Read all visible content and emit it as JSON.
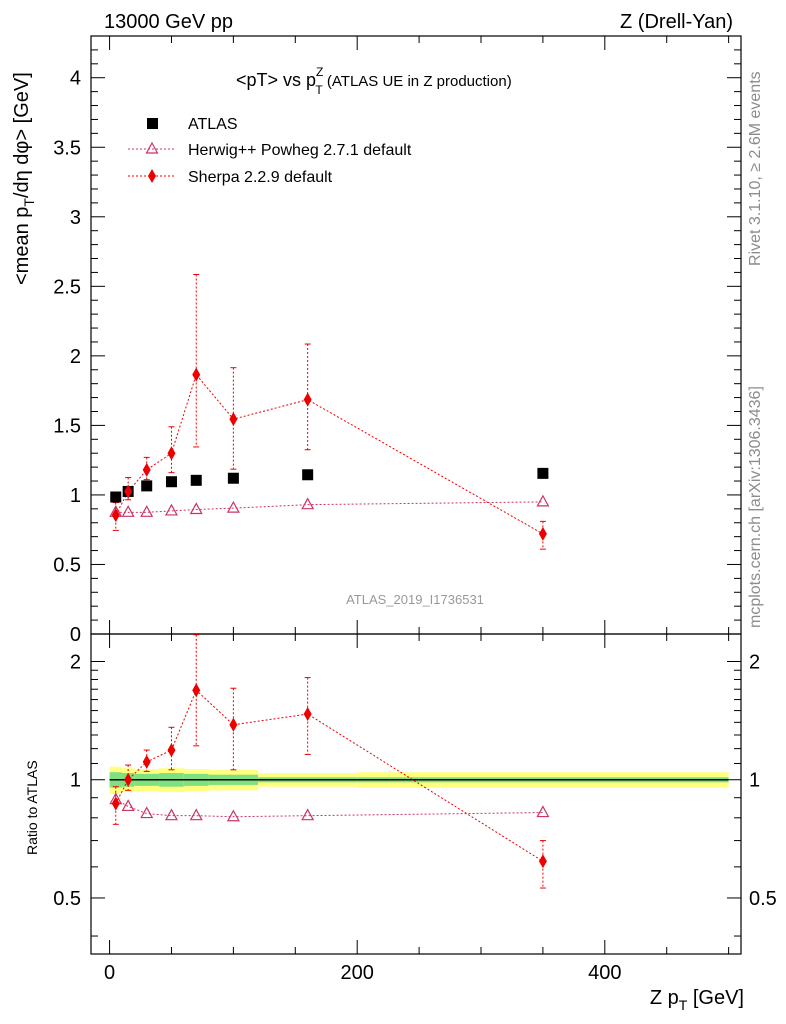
{
  "header": {
    "energy": "13000 GeV pp",
    "process": "Z (Drell-Yan)"
  },
  "side": {
    "rivet": "Rivet 3.1.10, ≥ 2.6M events",
    "site": "mcplots.cern.ch [arXiv:1306.3436]"
  },
  "main": {
    "title_lead": "<pT> vs p",
    "title_sup": "Z",
    "title_sub": "T",
    "title_tail": " (ATLAS UE in Z production)",
    "ylabel_lead": "<mean p",
    "ylabel_sub": "T",
    "ylabel_tail": "/dη dφ> [GeV]",
    "watermark": "ATLAS_2019_I1736531",
    "y_ticks": [
      "0",
      "0.5",
      "1",
      "1.5",
      "2",
      "2.5",
      "3",
      "3.5",
      "4"
    ]
  },
  "ratio": {
    "ylabel": "Ratio to ATLAS",
    "y_ticks": [
      "0.5",
      "1",
      "2"
    ]
  },
  "xaxis": {
    "label_lead": "Z p",
    "label_sub": "T",
    "label_tail": " [GeV]",
    "ticks": [
      "0",
      "200",
      "400"
    ]
  },
  "colors": {
    "atlas": "#000000",
    "herwig": "#cc3366",
    "sherpa": "#ee0000",
    "band_inner": "#7fe07f",
    "band_outer": "#ffff80"
  },
  "chart_data": {
    "type": "scatter",
    "xlim": [
      -15,
      510
    ],
    "ylim": [
      0,
      4.3
    ],
    "ratio_ylim": [
      0.36,
      2.35
    ],
    "ratio_scale": "log",
    "grid": false,
    "legend_position": "top-left",
    "x": [
      5,
      15,
      30,
      50,
      70,
      100,
      160,
      350
    ],
    "series": [
      {
        "name": "ATLAS",
        "marker": "square",
        "values": [
          0.985,
          1.025,
          1.065,
          1.095,
          1.105,
          1.12,
          1.145,
          1.155
        ]
      },
      {
        "name": "Herwig++ Powheg 2.7.1 default",
        "marker": "open-triangle",
        "values": [
          0.875,
          0.875,
          0.875,
          0.885,
          0.895,
          0.905,
          0.93,
          0.95
        ],
        "ratio": [
          0.89,
          0.855,
          0.82,
          0.81,
          0.81,
          0.805,
          0.81,
          0.825
        ]
      },
      {
        "name": "Sherpa 2.2.9 default",
        "marker": "diamond",
        "values": [
          0.855,
          1.025,
          1.18,
          1.3,
          1.865,
          1.545,
          1.685,
          0.72
        ],
        "err_low": [
          0.11,
          0.06,
          0.07,
          0.14,
          0.52,
          0.36,
          0.36,
          0.11
        ],
        "err_high": [
          0.09,
          0.1,
          0.09,
          0.19,
          0.72,
          0.37,
          0.4,
          0.09
        ],
        "ratio": [
          0.87,
          1.0,
          1.11,
          1.19,
          1.69,
          1.38,
          1.47,
          0.62
        ],
        "ratio_err_low": [
          0.1,
          0.06,
          0.06,
          0.13,
          0.47,
          0.32,
          0.31,
          0.09
        ],
        "ratio_err_high": [
          0.09,
          0.09,
          0.08,
          0.17,
          0.65,
          0.33,
          0.35,
          0.08
        ]
      }
    ],
    "uncertainty_band": [
      {
        "x_low": 0,
        "x_high": 10,
        "inner": 0.045,
        "outer": 0.08
      },
      {
        "x_low": 10,
        "x_high": 20,
        "inner": 0.04,
        "outer": 0.07
      },
      {
        "x_low": 20,
        "x_high": 40,
        "inner": 0.035,
        "outer": 0.065
      },
      {
        "x_low": 40,
        "x_high": 60,
        "inner": 0.04,
        "outer": 0.07
      },
      {
        "x_low": 60,
        "x_high": 80,
        "inner": 0.035,
        "outer": 0.065
      },
      {
        "x_low": 80,
        "x_high": 120,
        "inner": 0.03,
        "outer": 0.06
      },
      {
        "x_low": 120,
        "x_high": 200,
        "inner": 0.015,
        "outer": 0.04
      },
      {
        "x_low": 200,
        "x_high": 500,
        "inner": 0.015,
        "outer": 0.045
      }
    ]
  }
}
